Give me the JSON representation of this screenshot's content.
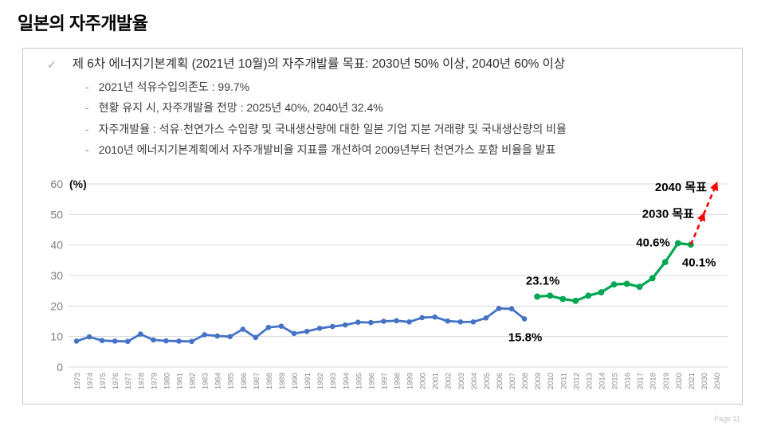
{
  "page": {
    "title": "일본의 자주개발율",
    "page_number": "Page 11"
  },
  "notes": {
    "bullet_icon": "✓",
    "dash_icon": "-",
    "main": "제 6차 에너지기본계획 (2021년 10월)의 자주개발률 목표: 2030년 50% 이상, 2040년 60% 이상",
    "sub": [
      "2021년 석유수입의존도 : 99.7%",
      "현황 유지 시, 자주개발율 전망 : 2025년 40%, 2040년 32.4%",
      "자주개발율 : 석유·천연가스 수입량 및 국내생산량에 대한 일본 기업 지분 거래량 및 국내생산량의 비율",
      "2010년 에너지기본계획에서 자주개발비율 지표를 개선하여 2009년부터 천연가스 포함 비율을 발표"
    ]
  },
  "colors": {
    "actual_blue": "#4472C4",
    "actual_green": "#00A651",
    "target_red": "#FF0000",
    "grid": "#D9D9D9",
    "axis_text": "#7F7F7F",
    "tick_text": "#8C8C8C",
    "annotation_text": "#000000",
    "box_border": "#C9C9C9"
  },
  "chart_data": {
    "type": "line",
    "title": "",
    "unit_label": "(%)",
    "xlabel": "",
    "ylabel": "%",
    "ylim": [
      0,
      60
    ],
    "yticks": [
      0,
      10,
      20,
      30,
      40,
      50,
      60
    ],
    "grid": true,
    "legend": "none",
    "categories": [
      "1973",
      "1974",
      "1975",
      "1976",
      "1977",
      "1978",
      "1979",
      "1980",
      "1981",
      "1982",
      "1983",
      "1984",
      "1985",
      "1986",
      "1987",
      "1988",
      "1989",
      "1990",
      "1991",
      "1992",
      "1993",
      "1994",
      "1995",
      "1996",
      "1997",
      "1998",
      "1999",
      "2000",
      "2001",
      "2002",
      "2003",
      "2004",
      "2005",
      "2006",
      "2007",
      "2008",
      "2009",
      "2010",
      "2011",
      "2012",
      "2013",
      "2014",
      "2015",
      "2016",
      "2017",
      "2018",
      "2019",
      "2020",
      "2021",
      "2030",
      "2040"
    ],
    "series": [
      {
        "name": "self-development-rate-oil-1973-2008",
        "color": "#4472C4",
        "style": "solid",
        "start_index": 0,
        "values": [
          8.5,
          9.9,
          8.7,
          8.5,
          8.4,
          10.8,
          8.9,
          8.6,
          8.5,
          8.4,
          10.6,
          10.2,
          10.0,
          12.4,
          9.7,
          13.0,
          13.4,
          11.0,
          11.7,
          12.7,
          13.3,
          13.8,
          14.7,
          14.6,
          15.0,
          15.2,
          14.8,
          16.2,
          16.4,
          15.1,
          14.8,
          14.8,
          16.1,
          19.2,
          19.1,
          15.8
        ]
      },
      {
        "name": "self-development-rate-incl-gas-2009-2021",
        "color": "#00A651",
        "style": "solid",
        "start_index": 36,
        "values": [
          23.1,
          23.4,
          22.3,
          21.7,
          23.4,
          24.5,
          27.1,
          27.3,
          26.3,
          29.1,
          34.4,
          40.6,
          40.1
        ]
      },
      {
        "name": "target-trajectory-2030-2040",
        "color": "#FF0000",
        "style": "dashed-arrow",
        "points": [
          {
            "category": "2021",
            "value": 40.1
          },
          {
            "category": "2030",
            "value": 50
          },
          {
            "category": "2040",
            "value": 60
          }
        ]
      }
    ],
    "annotations": [
      {
        "text": "23.1%",
        "category": "2009",
        "value": 23.1
      },
      {
        "text": "15.8%",
        "category": "2008",
        "value": 15.8
      },
      {
        "text": "40.6%",
        "category": "2020",
        "value": 40.6
      },
      {
        "text": "40.1%",
        "category": "2021",
        "value": 40.1
      },
      {
        "text": "2030 목표",
        "category": "2030",
        "value": 50
      },
      {
        "text": "2040 목표",
        "category": "2040",
        "value": 60
      }
    ]
  }
}
